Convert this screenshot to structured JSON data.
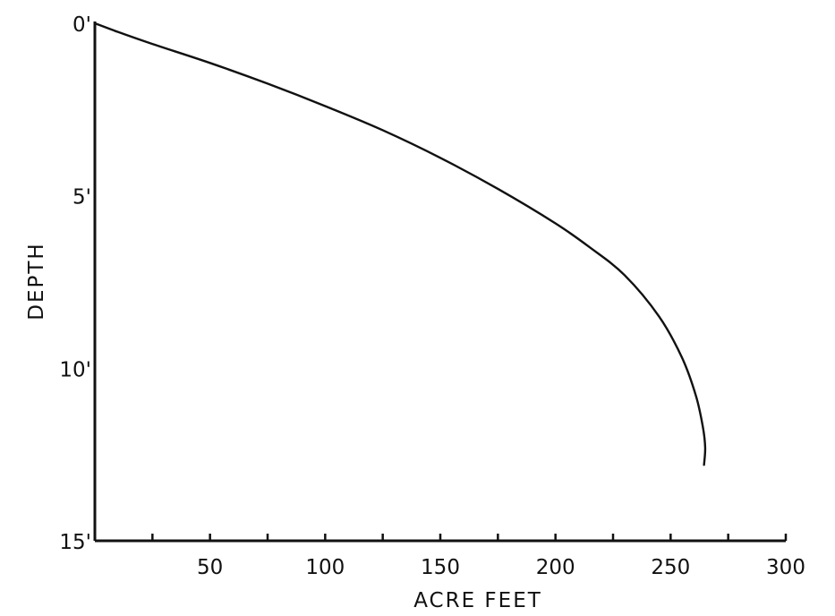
{
  "chart_data": {
    "type": "line",
    "title": "",
    "xlabel": "ACRE FEET",
    "ylabel": "DEPTH",
    "xlim": [
      0,
      300
    ],
    "ylim": [
      0,
      15
    ],
    "y_inverted": true,
    "grid": false,
    "x_ticks": [
      0,
      25,
      50,
      75,
      100,
      125,
      150,
      175,
      200,
      225,
      250,
      275,
      300
    ],
    "x_tick_labels": [
      {
        "value": 50,
        "label": "50"
      },
      {
        "value": 100,
        "label": "100"
      },
      {
        "value": 150,
        "label": "150"
      },
      {
        "value": 200,
        "label": "200"
      },
      {
        "value": 250,
        "label": "250"
      },
      {
        "value": 300,
        "label": "300"
      }
    ],
    "y_tick_labels": [
      {
        "value": 0,
        "label": "0'"
      },
      {
        "value": 5,
        "label": "5'"
      },
      {
        "value": 10,
        "label": "10'"
      },
      {
        "value": 15,
        "label": "15'"
      }
    ],
    "series": [
      {
        "color": "#111111",
        "points": [
          {
            "x": 0,
            "y": 0
          },
          {
            "x": 10,
            "y": 0.25
          },
          {
            "x": 25,
            "y": 0.6
          },
          {
            "x": 50,
            "y": 1.15
          },
          {
            "x": 75,
            "y": 1.75
          },
          {
            "x": 100,
            "y": 2.4
          },
          {
            "x": 125,
            "y": 3.1
          },
          {
            "x": 150,
            "y": 3.9
          },
          {
            "x": 175,
            "y": 4.8
          },
          {
            "x": 200,
            "y": 5.8
          },
          {
            "x": 215,
            "y": 6.5
          },
          {
            "x": 230,
            "y": 7.3
          },
          {
            "x": 245,
            "y": 8.5
          },
          {
            "x": 255,
            "y": 9.7
          },
          {
            "x": 261,
            "y": 10.8
          },
          {
            "x": 264,
            "y": 11.7
          },
          {
            "x": 265,
            "y": 12.3
          },
          {
            "x": 264.5,
            "y": 12.8
          }
        ]
      }
    ]
  }
}
